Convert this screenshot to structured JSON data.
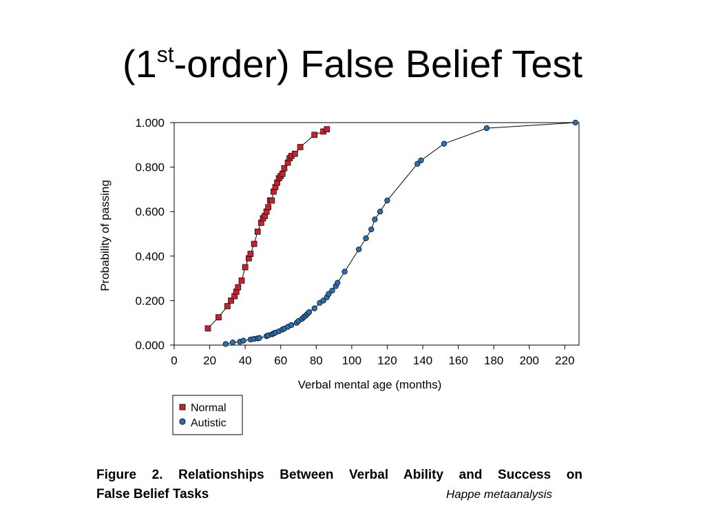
{
  "slide": {
    "title_pre": "(1",
    "title_sup": "st",
    "title_post": "-order) False Belief Test"
  },
  "caption": {
    "line1": "Figure 2. Relationships Between Verbal Ability and Success on",
    "line2": "False Belief Tasks",
    "source": "Happe metaanalysis"
  },
  "chart_data": {
    "type": "line",
    "title": "",
    "xlabel": "Verbal mental age (months)",
    "ylabel": "Probability of passing",
    "xlim": [
      0,
      228
    ],
    "ylim": [
      0,
      1
    ],
    "xticks": [
      0,
      20,
      40,
      60,
      80,
      100,
      120,
      140,
      160,
      180,
      200,
      220
    ],
    "yticks": [
      0,
      0.2,
      0.4,
      0.6,
      0.8,
      1.0
    ],
    "xtick_labels": [
      "0",
      "20",
      "40",
      "60",
      "80",
      "100",
      "120",
      "140",
      "160",
      "180",
      "200",
      "220"
    ],
    "ytick_labels": [
      "0.000",
      "0.200",
      "0.400",
      "0.600",
      "0.800",
      "1.000"
    ],
    "grid": false,
    "legend_position": "bottom-left",
    "series": [
      {
        "name": "Normal",
        "marker": "square",
        "color": "#c8202f",
        "x": [
          19,
          25,
          30,
          32,
          34,
          35,
          36,
          38,
          40,
          42,
          43,
          45,
          47,
          49,
          50,
          51,
          52,
          53,
          54,
          55,
          56,
          57,
          58,
          59,
          60,
          61,
          62,
          64,
          65,
          66,
          68,
          71,
          79,
          84,
          86
        ],
        "y": [
          0.075,
          0.125,
          0.175,
          0.2,
          0.22,
          0.24,
          0.26,
          0.29,
          0.35,
          0.39,
          0.41,
          0.455,
          0.51,
          0.55,
          0.57,
          0.58,
          0.6,
          0.62,
          0.65,
          0.65,
          0.69,
          0.71,
          0.73,
          0.75,
          0.76,
          0.77,
          0.795,
          0.82,
          0.84,
          0.85,
          0.86,
          0.89,
          0.945,
          0.96,
          0.97
        ]
      },
      {
        "name": "Autistic",
        "marker": "circle",
        "color": "#2a6fb0",
        "x": [
          29,
          33,
          37,
          39,
          43,
          45,
          47,
          48,
          52,
          53,
          55,
          56,
          57,
          59,
          61,
          62,
          64,
          66,
          69,
          70,
          72,
          73,
          74,
          75,
          76,
          79,
          82,
          84,
          86,
          87,
          89,
          91,
          92,
          96,
          104,
          108,
          111,
          113,
          116,
          120,
          137,
          139,
          152,
          176,
          226
        ],
        "y": [
          0.005,
          0.012,
          0.015,
          0.02,
          0.025,
          0.028,
          0.03,
          0.032,
          0.04,
          0.044,
          0.048,
          0.052,
          0.056,
          0.062,
          0.07,
          0.074,
          0.082,
          0.09,
          0.1,
          0.108,
          0.118,
          0.126,
          0.132,
          0.14,
          0.148,
          0.165,
          0.19,
          0.2,
          0.215,
          0.23,
          0.245,
          0.265,
          0.28,
          0.33,
          0.43,
          0.48,
          0.52,
          0.565,
          0.6,
          0.65,
          0.815,
          0.83,
          0.905,
          0.975,
          1.0
        ]
      }
    ]
  }
}
